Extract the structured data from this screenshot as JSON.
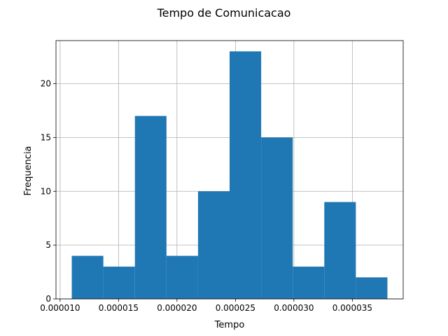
{
  "chart_data": {
    "type": "bar",
    "subtype": "histogram",
    "title": "Tempo de Comunicacao",
    "xlabel": "Tempo",
    "ylabel": "Frequencia",
    "bin_edges": [
      1.1e-05,
      1.37e-05,
      1.64e-05,
      1.91e-05,
      2.18e-05,
      2.45e-05,
      2.72e-05,
      2.99e-05,
      3.26e-05,
      3.53e-05,
      3.8e-05
    ],
    "values": [
      4,
      3,
      17,
      4,
      10,
      23,
      15,
      3,
      9,
      2
    ],
    "xlim": [
      1.1e-05,
      3.8e-05
    ],
    "ylim": [
      0,
      24
    ],
    "xticks": [
      1e-05,
      1.5e-05,
      2e-05,
      2.5e-05,
      3e-05,
      3.5e-05
    ],
    "xtick_labels": [
      "0.000010",
      "0.000015",
      "0.000020",
      "0.000025",
      "0.000030",
      "0.000035"
    ],
    "yticks": [
      0,
      5,
      10,
      15,
      20
    ],
    "ytick_labels": [
      "0",
      "5",
      "10",
      "15",
      "20"
    ],
    "grid": true,
    "bar_color": "#1f77b4",
    "grid_color": "#b0b0b0"
  }
}
